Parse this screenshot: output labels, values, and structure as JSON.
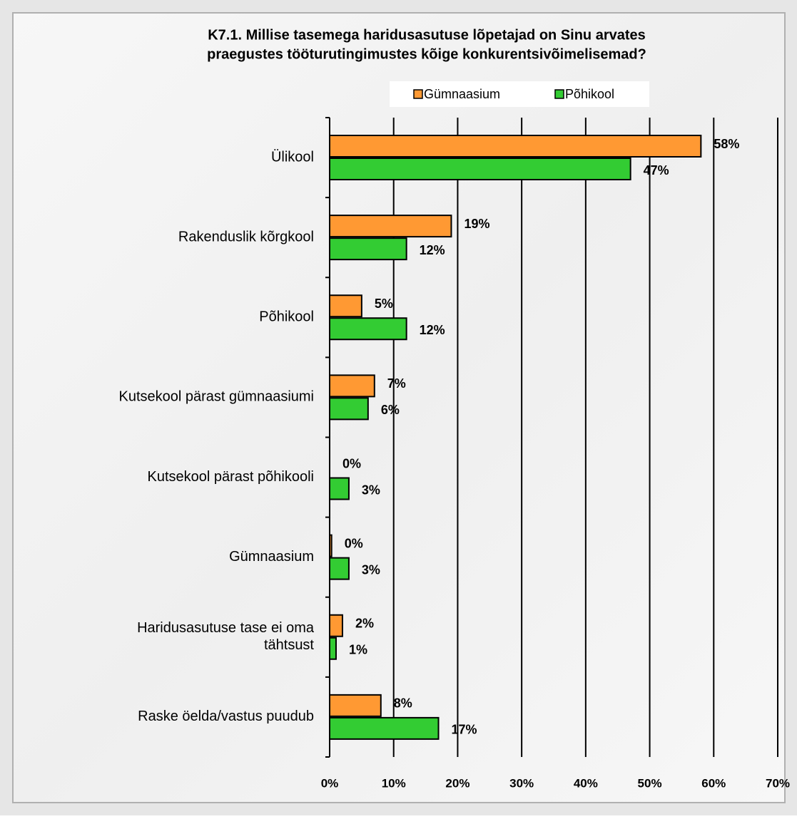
{
  "chart_data": {
    "type": "barh",
    "title": [
      "K7.1.   Millise tasemega haridusasutuse lõpetajad on Sinu arvates",
      "praegustes tööturutingimustes kõige konkurentsivõimelisemad?"
    ],
    "categories": [
      "Ülikool",
      "Rakenduslik kõrgkool",
      "Põhikool",
      "Kutsekool pärast gümnaasiumi",
      "Kutsekool pärast põhikooli",
      "Gümnaasium",
      "Haridusasutuse tase ei oma\ntähtsust",
      "Raske öelda/vastus puudub"
    ],
    "series": [
      {
        "name": "Gümnaasium",
        "color": "#ff9933",
        "values": [
          58,
          19,
          5,
          7,
          0,
          0.3,
          2,
          8
        ],
        "value_labels": [
          "58%",
          "19%",
          "5%",
          "7%",
          "0%",
          "0%",
          "2%",
          "8%"
        ]
      },
      {
        "name": "Põhikool",
        "color": "#33cc33",
        "values": [
          47,
          12,
          12,
          6,
          3,
          3,
          1,
          17
        ],
        "value_labels": [
          "47%",
          "12%",
          "12%",
          "6%",
          "3%",
          "3%",
          "1%",
          "17%"
        ]
      }
    ],
    "xlim": [
      0,
      70
    ],
    "xticks": [
      {
        "value": 0,
        "label": "0%"
      },
      {
        "value": 10,
        "label": "10%"
      },
      {
        "value": 20,
        "label": "20%"
      },
      {
        "value": 30,
        "label": "30%"
      },
      {
        "value": 40,
        "label": "40%"
      },
      {
        "value": 50,
        "label": "50%"
      },
      {
        "value": 60,
        "label": "60%"
      },
      {
        "value": 70,
        "label": "70%"
      }
    ],
    "grid": true,
    "legend": "top"
  }
}
